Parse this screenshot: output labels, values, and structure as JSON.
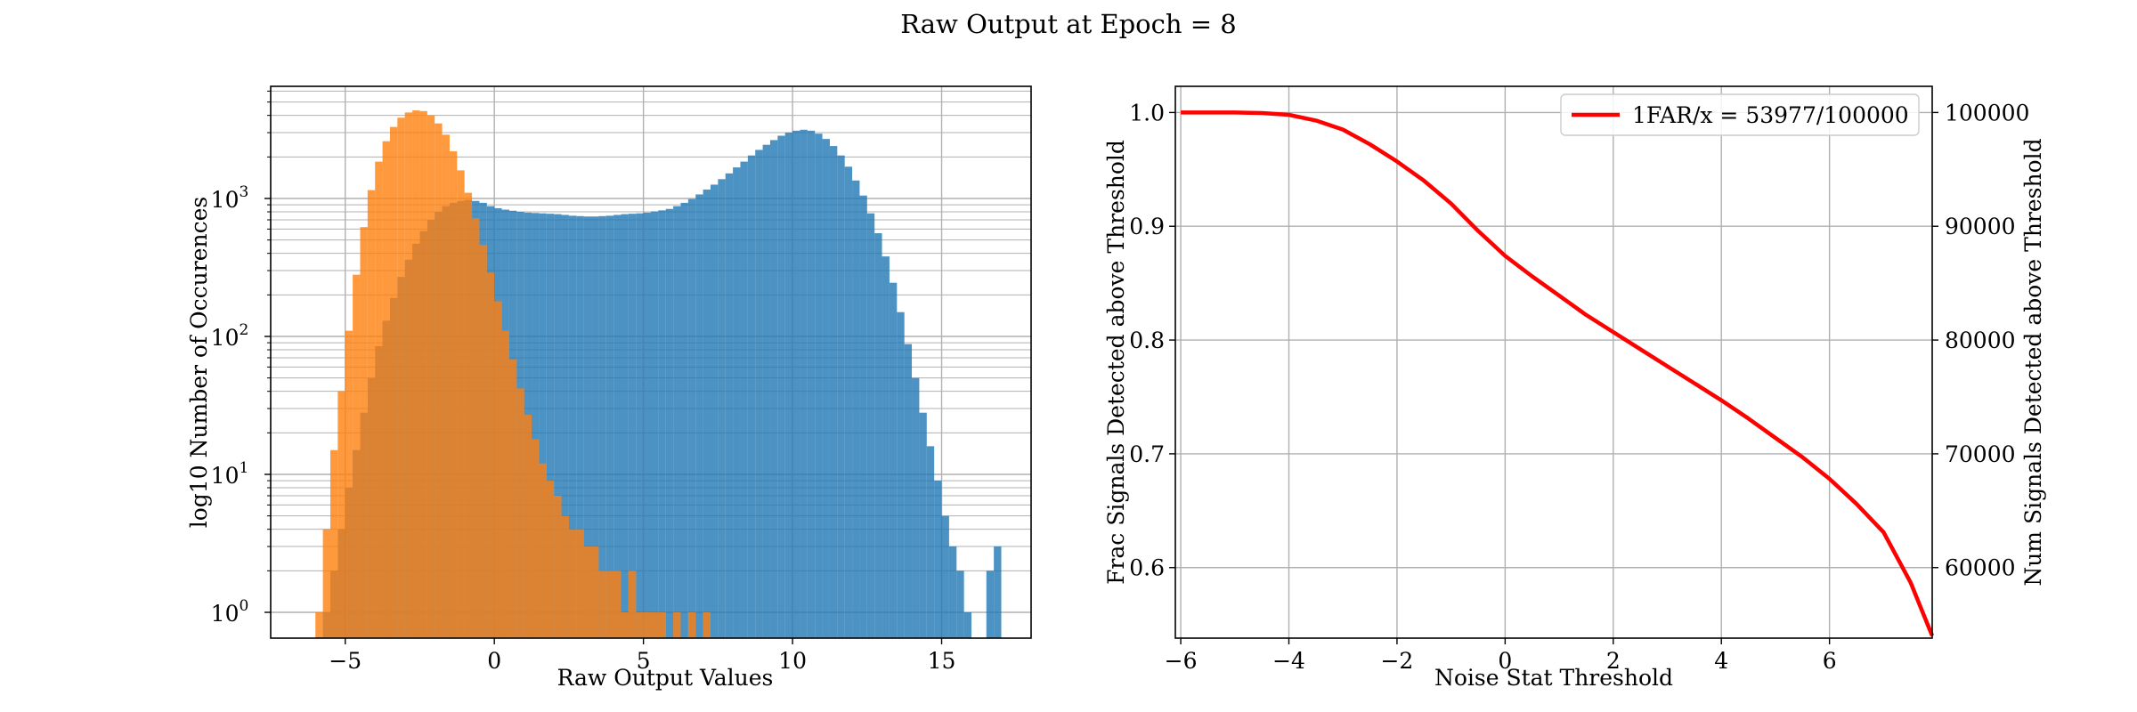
{
  "figure": {
    "title": "Raw Output at Epoch = 8"
  },
  "chart_data": [
    {
      "type": "bar",
      "subtype": "overlaid-histogram",
      "title": "",
      "xlabel": "Raw Output Values",
      "ylabel": "log10 Number of Occurences",
      "xlim": [
        -7.5,
        18
      ],
      "ylim": [
        0.65,
        6500
      ],
      "yscale": "log",
      "grid": "major-and-minor",
      "xticks": [
        -5,
        0,
        5,
        10,
        15
      ],
      "xtick_labels": [
        "−5",
        "0",
        "5",
        "10",
        "15"
      ],
      "yticks": [
        1,
        10,
        100,
        1000
      ],
      "ytick_labels": [
        [
          "10",
          "0"
        ],
        [
          "10",
          "1"
        ],
        [
          "10",
          "2"
        ],
        [
          "10",
          "3"
        ]
      ],
      "bin_width": 0.25,
      "series": [
        {
          "color": "#1f77b4",
          "alpha": 0.8,
          "points": [
            [
              -6.0,
              0
            ],
            [
              -5.75,
              1
            ],
            [
              -5.5,
              2
            ],
            [
              -5.25,
              4
            ],
            [
              -5.0,
              8
            ],
            [
              -4.75,
              15
            ],
            [
              -4.5,
              28
            ],
            [
              -4.25,
              50
            ],
            [
              -4.0,
              85
            ],
            [
              -3.75,
              130
            ],
            [
              -3.5,
              190
            ],
            [
              -3.25,
              270
            ],
            [
              -3.0,
              360
            ],
            [
              -2.75,
              470
            ],
            [
              -2.5,
              580
            ],
            [
              -2.25,
              700
            ],
            [
              -2.0,
              800
            ],
            [
              -1.75,
              880
            ],
            [
              -1.5,
              930
            ],
            [
              -1.25,
              960
            ],
            [
              -1.0,
              975
            ],
            [
              -0.75,
              960
            ],
            [
              -0.5,
              930
            ],
            [
              -0.25,
              880
            ],
            [
              0.0,
              850
            ],
            [
              0.25,
              830
            ],
            [
              0.5,
              815
            ],
            [
              0.75,
              800
            ],
            [
              1.0,
              790
            ],
            [
              1.25,
              785
            ],
            [
              1.5,
              780
            ],
            [
              1.75,
              775
            ],
            [
              2.0,
              770
            ],
            [
              2.25,
              760
            ],
            [
              2.5,
              750
            ],
            [
              2.75,
              745
            ],
            [
              3.0,
              740
            ],
            [
              3.25,
              740
            ],
            [
              3.5,
              745
            ],
            [
              3.75,
              750
            ],
            [
              4.0,
              760
            ],
            [
              4.25,
              770
            ],
            [
              4.5,
              775
            ],
            [
              4.75,
              780
            ],
            [
              5.0,
              790
            ],
            [
              5.25,
              805
            ],
            [
              5.5,
              820
            ],
            [
              5.75,
              840
            ],
            [
              6.0,
              880
            ],
            [
              6.25,
              930
            ],
            [
              6.5,
              990
            ],
            [
              6.75,
              1070
            ],
            [
              7.0,
              1160
            ],
            [
              7.25,
              1260
            ],
            [
              7.5,
              1380
            ],
            [
              7.75,
              1520
            ],
            [
              8.0,
              1680
            ],
            [
              8.25,
              1850
            ],
            [
              8.5,
              2050
            ],
            [
              8.75,
              2250
            ],
            [
              9.0,
              2450
            ],
            [
              9.25,
              2650
            ],
            [
              9.5,
              2850
            ],
            [
              9.75,
              3000
            ],
            [
              10.0,
              3100
            ],
            [
              10.25,
              3150
            ],
            [
              10.5,
              3100
            ],
            [
              10.75,
              2950
            ],
            [
              11.0,
              2700
            ],
            [
              11.25,
              2400
            ],
            [
              11.5,
              2050
            ],
            [
              11.75,
              1700
            ],
            [
              12.0,
              1350
            ],
            [
              12.25,
              1050
            ],
            [
              12.5,
              780
            ],
            [
              12.75,
              560
            ],
            [
              13.0,
              380
            ],
            [
              13.25,
              245
            ],
            [
              13.5,
              150
            ],
            [
              13.75,
              88
            ],
            [
              14.0,
              50
            ],
            [
              14.25,
              28
            ],
            [
              14.5,
              16
            ],
            [
              14.75,
              9
            ],
            [
              15.0,
              5
            ],
            [
              15.25,
              3
            ],
            [
              15.5,
              2
            ],
            [
              15.75,
              1
            ],
            [
              16.0,
              0
            ],
            [
              16.25,
              0
            ],
            [
              16.5,
              2
            ],
            [
              16.75,
              3
            ]
          ]
        },
        {
          "color": "#ff7f0e",
          "alpha": 0.8,
          "points": [
            [
              -6.25,
              0
            ],
            [
              -6.0,
              1
            ],
            [
              -5.75,
              4
            ],
            [
              -5.5,
              15
            ],
            [
              -5.25,
              40
            ],
            [
              -5.0,
              110
            ],
            [
              -4.75,
              280
            ],
            [
              -4.5,
              620
            ],
            [
              -4.25,
              1150
            ],
            [
              -4.0,
              1850
            ],
            [
              -3.75,
              2600
            ],
            [
              -3.5,
              3300
            ],
            [
              -3.25,
              3850
            ],
            [
              -3.0,
              4200
            ],
            [
              -2.75,
              4350
            ],
            [
              -2.5,
              4300
            ],
            [
              -2.25,
              4000
            ],
            [
              -2.0,
              3500
            ],
            [
              -1.75,
              2900
            ],
            [
              -1.5,
              2200
            ],
            [
              -1.25,
              1600
            ],
            [
              -1.0,
              1100
            ],
            [
              -0.75,
              720
            ],
            [
              -0.5,
              460
            ],
            [
              -0.25,
              290
            ],
            [
              0.0,
              180
            ],
            [
              0.25,
              110
            ],
            [
              0.5,
              68
            ],
            [
              0.75,
              42
            ],
            [
              1.0,
              27
            ],
            [
              1.25,
              18
            ],
            [
              1.5,
              12
            ],
            [
              1.75,
              9
            ],
            [
              2.0,
              7
            ],
            [
              2.25,
              5
            ],
            [
              2.5,
              4
            ],
            [
              2.75,
              4
            ],
            [
              3.0,
              3
            ],
            [
              3.25,
              3
            ],
            [
              3.5,
              2
            ],
            [
              3.75,
              2
            ],
            [
              4.0,
              2
            ],
            [
              4.25,
              1
            ],
            [
              4.5,
              2
            ],
            [
              4.75,
              1
            ],
            [
              5.0,
              1
            ],
            [
              5.25,
              1
            ],
            [
              5.5,
              1
            ],
            [
              5.75,
              0
            ],
            [
              6.0,
              1
            ],
            [
              6.25,
              0
            ],
            [
              6.5,
              1
            ],
            [
              6.75,
              0
            ],
            [
              7.0,
              1
            ]
          ]
        }
      ]
    },
    {
      "type": "line",
      "title": "",
      "xlabel": "Noise Stat Threshold",
      "ylabel": "Frac Signals Detected above Threshold",
      "ylabel_right": "Num Signals Detected above Threshold",
      "xlim": [
        -6.1,
        7.9
      ],
      "ylim": [
        0.538,
        1.023
      ],
      "grid": true,
      "legend": "top-right",
      "xticks": [
        -6,
        -4,
        -2,
        0,
        2,
        4,
        6
      ],
      "xtick_labels": [
        "−6",
        "−4",
        "−2",
        "0",
        "2",
        "4",
        "6"
      ],
      "yticks": [
        0.6,
        0.7,
        0.8,
        0.9,
        1.0
      ],
      "ytick_labels": [
        "0.6",
        "0.7",
        "0.8",
        "0.9",
        "1.0"
      ],
      "yticks_right": [
        60000,
        70000,
        80000,
        90000,
        100000
      ],
      "ytick_labels_right": [
        "60000",
        "70000",
        "80000",
        "90000",
        "100000"
      ],
      "series": [
        {
          "name": "1FAR/x = 53977/100000",
          "color": "#ff0000",
          "x": [
            -6.0,
            -5.0,
            -4.5,
            -4.0,
            -3.5,
            -3.0,
            -2.5,
            -2.0,
            -1.5,
            -1.0,
            -0.5,
            0.0,
            0.5,
            1.0,
            1.5,
            2.0,
            2.5,
            3.0,
            3.5,
            4.0,
            4.5,
            5.0,
            5.5,
            6.0,
            6.5,
            7.0,
            7.5,
            7.9
          ],
          "y": [
            1.0,
            1.0,
            0.9995,
            0.998,
            0.993,
            0.985,
            0.972,
            0.957,
            0.94,
            0.92,
            0.896,
            0.874,
            0.856,
            0.839,
            0.822,
            0.807,
            0.792,
            0.777,
            0.762,
            0.747,
            0.731,
            0.714,
            0.697,
            0.678,
            0.656,
            0.631,
            0.587,
            0.54
          ]
        }
      ]
    }
  ]
}
